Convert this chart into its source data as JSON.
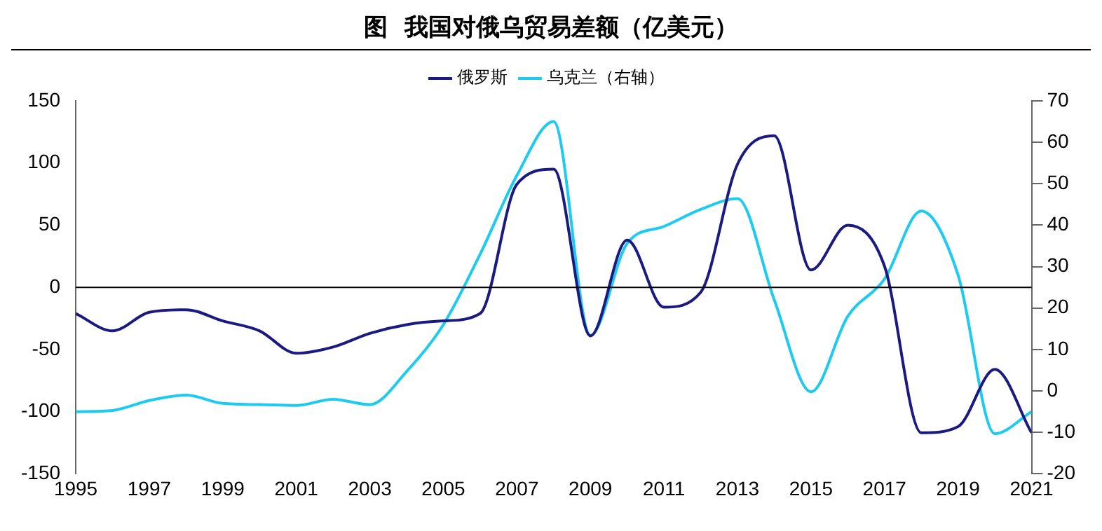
{
  "chart_data": {
    "type": "line",
    "title": "图  我国对俄乌贸易差额（亿美元）",
    "x": [
      1995,
      1996,
      1997,
      1998,
      1999,
      2000,
      2001,
      2002,
      2003,
      2004,
      2005,
      2006,
      2007,
      2008,
      2009,
      2010,
      2011,
      2012,
      2013,
      2014,
      2015,
      2016,
      2017,
      2018,
      2019,
      2020,
      2021
    ],
    "series": [
      {
        "name": "俄罗斯",
        "color": "#1a1a80",
        "values": [
          -21,
          -35,
          -20,
          -18,
          -27,
          -35,
          -53,
          -48,
          -37,
          -30,
          -27,
          -21,
          83,
          95,
          -39,
          38,
          -16,
          -4,
          99,
          122,
          14,
          50,
          17,
          -117,
          -112,
          -66,
          -117
        ]
      },
      {
        "name": "乌克兰（右轴）",
        "color": "#1ecbf0",
        "axis": "y2",
        "values": [
          -5,
          -4.7,
          -2.3,
          -1,
          -3,
          -3.3,
          -3.5,
          -2,
          -3.3,
          4.7,
          16,
          33,
          52,
          65,
          13.4,
          35.6,
          39.7,
          43.8,
          46.4,
          22,
          -0.2,
          18,
          27,
          43.4,
          28,
          -10.3,
          -5
        ]
      }
    ],
    "xlim": [
      1995,
      2021
    ],
    "xticks": [
      1995,
      1997,
      1999,
      2001,
      2003,
      2005,
      2007,
      2009,
      2011,
      2013,
      2015,
      2017,
      2019,
      2021
    ],
    "ylim": [
      -150,
      150
    ],
    "yticks": [
      -150,
      -100,
      -50,
      0,
      50,
      100,
      150
    ],
    "y2lim": [
      -20,
      70
    ],
    "y2ticks": [
      -20,
      -10,
      0,
      10,
      20,
      30,
      40,
      50,
      60,
      70
    ],
    "ref_lines": [
      {
        "axis": "y",
        "value": 0,
        "color": "#000000"
      }
    ],
    "legend": "top",
    "grid": false,
    "marker": "none",
    "line_style": "solid"
  }
}
